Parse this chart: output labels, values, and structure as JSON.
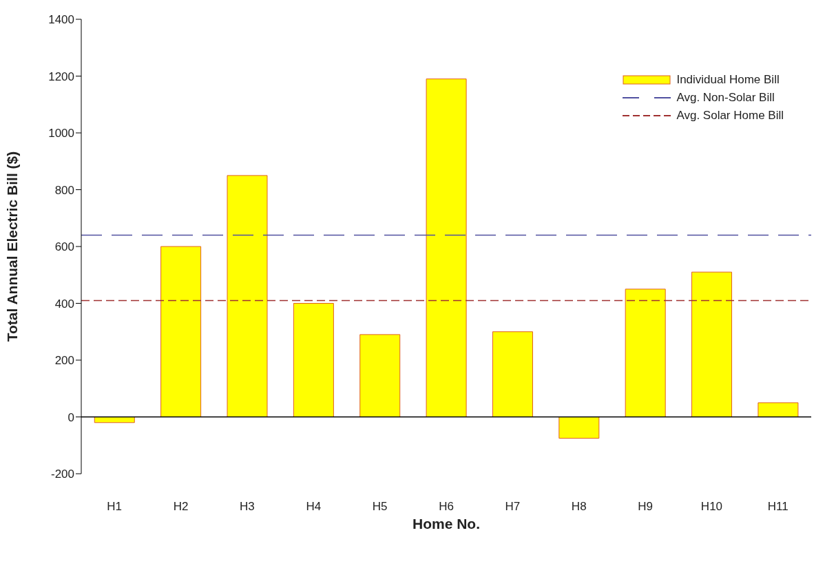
{
  "chart_data": {
    "type": "bar",
    "xlabel": "Home No.",
    "ylabel": "Total Annual Electric Bill ($)",
    "categories": [
      "H1",
      "H2",
      "H3",
      "H4",
      "H5",
      "H6",
      "H7",
      "H8",
      "H9",
      "H10",
      "H11"
    ],
    "series": [
      {
        "name": "Individual Home Bill",
        "color": "#ffff00",
        "values": [
          -20,
          600,
          850,
          400,
          290,
          1190,
          300,
          -75,
          450,
          510,
          50
        ]
      }
    ],
    "ylim": [
      -200,
      1400
    ],
    "yticks": [
      -200,
      0,
      200,
      400,
      600,
      800,
      1000,
      1200,
      1400
    ],
    "grid": false,
    "legend": "top right",
    "ref_lines": [
      {
        "axis": "y",
        "value": 0,
        "color": "#000000",
        "line_style": "solid"
      },
      {
        "axis": "y",
        "value": 640,
        "label": "Avg. Non-Solar Bill",
        "color": "#5050a0",
        "line_style": "dashed"
      },
      {
        "axis": "y",
        "value": 410,
        "label": "Avg. Solar Home Bill",
        "color": "#a03030",
        "line_style": "dashed"
      }
    ]
  }
}
